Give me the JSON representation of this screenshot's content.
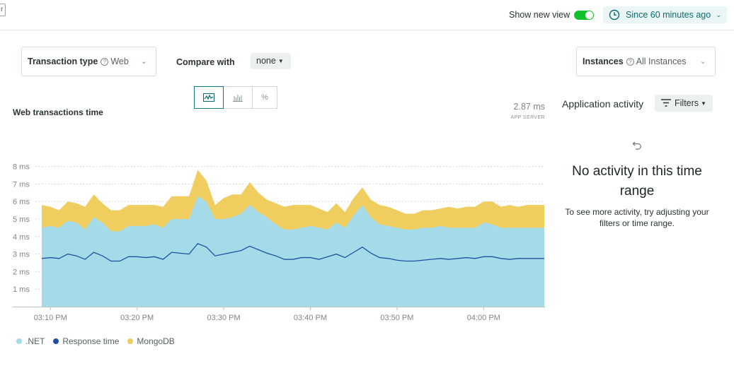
{
  "header": {
    "show_new_view_label": "Show new view",
    "time_picker_label": "Since 60 minutes ago"
  },
  "controls": {
    "transaction_type_label": "Transaction type",
    "transaction_type_value": "Web",
    "compare_label": "Compare with",
    "compare_value": "none",
    "instances_label": "Instances",
    "instances_value": "All Instances",
    "viz_percent_label": "%"
  },
  "chart_panel": {
    "title": "Web transactions time",
    "metric_value": "2.87 ms",
    "metric_sub": "APP SERVER"
  },
  "colors": {
    "net": "#a5dbe8",
    "response": "#1f4fa3",
    "mongodb": "#f0cd5f",
    "accent": "#0b6a6e",
    "toggle_on": "#11c12a"
  },
  "chart_data": {
    "type": "area",
    "title": "Web transactions time",
    "ylabel": "",
    "ylim": [
      0,
      8
    ],
    "y_ticks": [
      "1 ms",
      "2 ms",
      "3 ms",
      "4 ms",
      "5 ms",
      "6 ms",
      "7 ms",
      "8 ms"
    ],
    "x_ticks": [
      "03:10 PM",
      "03:20 PM",
      "03:30 PM",
      "03:40 PM",
      "03:50 PM",
      "04:00 PM"
    ],
    "x_start": "03:09 PM",
    "x_end": "04:07 PM",
    "series": [
      {
        "name": ".NET",
        "type": "area",
        "stacked": true,
        "color": "#a5dbe8",
        "values": [
          4.5,
          4.6,
          4.5,
          4.9,
          4.8,
          4.4,
          5.1,
          4.8,
          4.3,
          4.3,
          4.6,
          4.6,
          4.6,
          4.7,
          4.5,
          5.0,
          5.0,
          5.0,
          6.3,
          6.0,
          5.0,
          5.0,
          5.1,
          5.3,
          5.8,
          5.4,
          5.1,
          4.7,
          4.4,
          4.4,
          4.5,
          4.6,
          4.5,
          4.4,
          4.8,
          4.5,
          5.2,
          5.8,
          5.1,
          4.7,
          4.6,
          4.5,
          4.4,
          4.4,
          4.5,
          4.5,
          4.6,
          4.5,
          4.5,
          4.5,
          4.5,
          4.8,
          4.7,
          4.5,
          4.5,
          4.5,
          4.5,
          4.5,
          4.5
        ]
      },
      {
        "name": "MongoDB",
        "type": "area",
        "stacked": true,
        "color": "#f0cd5f",
        "values": [
          1.3,
          1.1,
          1.0,
          1.1,
          1.1,
          1.3,
          1.3,
          1.1,
          1.2,
          1.2,
          1.2,
          1.2,
          1.2,
          1.1,
          1.2,
          1.3,
          1.3,
          1.3,
          1.5,
          1.2,
          0.8,
          1.2,
          1.3,
          1.1,
          1.3,
          1.1,
          1.0,
          1.2,
          1.3,
          1.4,
          1.3,
          1.2,
          1.1,
          1.0,
          1.1,
          0.9,
          1.0,
          1.0,
          1.0,
          1.1,
          1.1,
          1.0,
          0.9,
          0.9,
          1.0,
          1.0,
          1.0,
          1.2,
          1.1,
          1.2,
          1.2,
          1.2,
          1.3,
          1.2,
          1.3,
          1.2,
          1.3,
          1.3,
          1.3
        ]
      },
      {
        "name": "Response time",
        "type": "line",
        "color": "#1f4fa3",
        "values": [
          2.75,
          2.8,
          2.75,
          3.0,
          2.9,
          2.7,
          3.1,
          2.9,
          2.6,
          2.6,
          2.85,
          2.85,
          2.8,
          2.85,
          2.7,
          3.1,
          3.05,
          3.0,
          3.6,
          3.4,
          2.9,
          3.0,
          3.1,
          3.2,
          3.45,
          3.25,
          3.05,
          2.9,
          2.7,
          2.7,
          2.8,
          2.8,
          2.7,
          2.85,
          3.0,
          2.8,
          3.1,
          3.4,
          3.05,
          2.8,
          2.75,
          2.65,
          2.6,
          2.6,
          2.65,
          2.7,
          2.75,
          2.7,
          2.75,
          2.8,
          2.75,
          2.85,
          2.85,
          2.75,
          2.7,
          2.75,
          2.75,
          2.75,
          2.75
        ]
      }
    ],
    "legend": [
      "NET",
      "Response time",
      "MongoDB"
    ],
    "legend_labels": [
      ".NET",
      "Response time",
      "MongoDB"
    ],
    "legend_position": "bottom-left",
    "grid": "horizontal dotted"
  },
  "activity": {
    "title": "Application activity",
    "filters_label": "Filters",
    "empty_title": "No activity in this time range",
    "empty_subtitle": "To see more activity, try adjusting your filters or time range."
  }
}
